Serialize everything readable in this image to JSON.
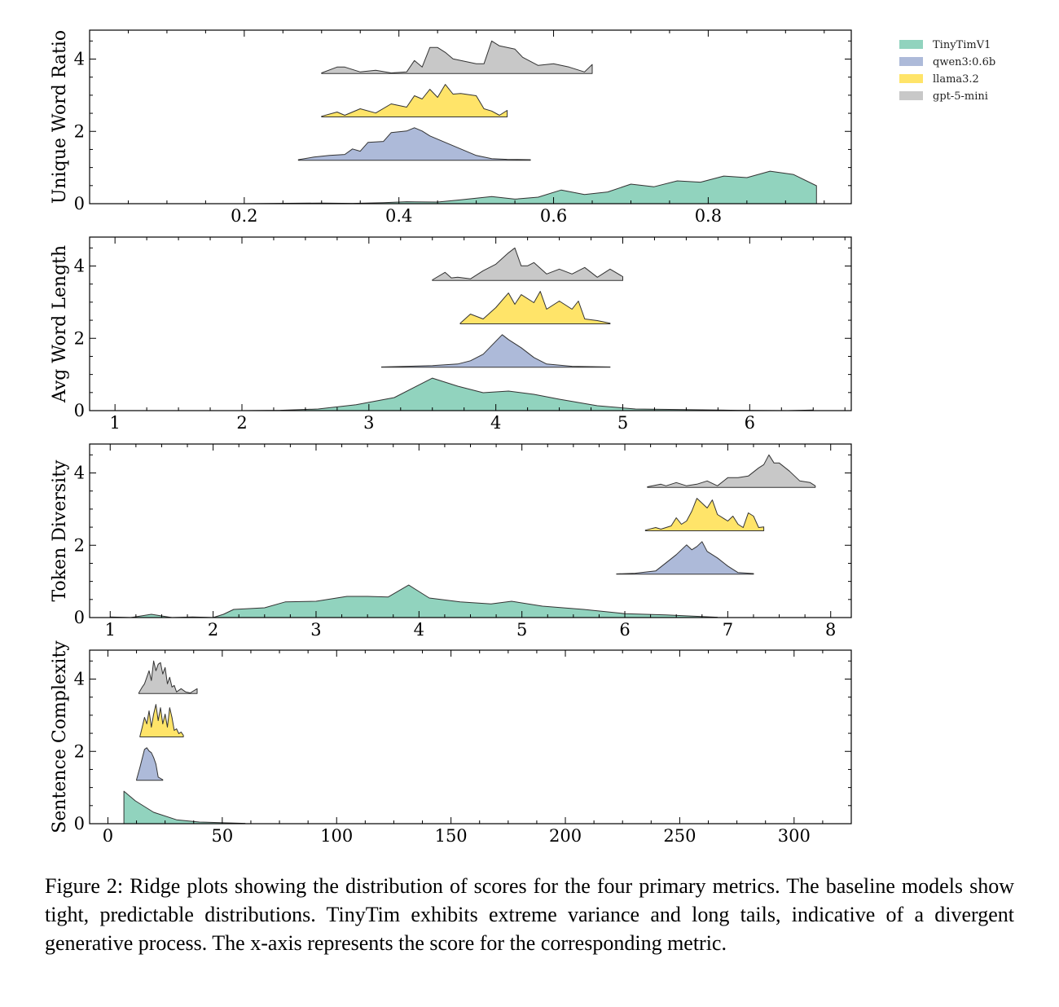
{
  "chart_data": [
    {
      "type": "area",
      "ylabel": "Unique Word Ratio",
      "xlabel": "",
      "xlim": [
        0.0,
        0.985
      ],
      "ylim": [
        0,
        4.8
      ],
      "xticks": [
        0.2,
        0.4,
        0.6,
        0.8
      ],
      "xtick_labels": [
        "0.2",
        "0.4",
        "0.6",
        "0.8"
      ],
      "yticks": [
        0,
        2,
        4
      ],
      "ytick_labels": [
        "0",
        "2",
        "4"
      ],
      "series": [
        {
          "name": "TinyTimV1",
          "offset": 0,
          "x": [
            0.03,
            0.1,
            0.2,
            0.3,
            0.34,
            0.38,
            0.41,
            0.45,
            0.48,
            0.52,
            0.55,
            0.58,
            0.61,
            0.64,
            0.67,
            0.7,
            0.73,
            0.76,
            0.79,
            0.82,
            0.85,
            0.88,
            0.91,
            0.94
          ],
          "y": [
            0,
            0,
            0,
            0.02,
            0.01,
            0.03,
            0.06,
            0.05,
            0.12,
            0.22,
            0.14,
            0.2,
            0.42,
            0.28,
            0.36,
            0.6,
            0.52,
            0.7,
            0.66,
            0.85,
            0.8,
            1.0,
            0.9,
            0.55
          ]
        },
        {
          "name": "qwen3:0.6b",
          "offset": 1.2,
          "x": [
            0.27,
            0.29,
            0.31,
            0.33,
            0.34,
            0.35,
            0.36,
            0.38,
            0.39,
            0.41,
            0.42,
            0.43,
            0.44,
            0.46,
            0.48,
            0.5,
            0.52,
            0.54,
            0.57
          ],
          "y": [
            0.02,
            0.1,
            0.15,
            0.18,
            0.35,
            0.28,
            0.55,
            0.58,
            0.85,
            0.9,
            1.0,
            0.9,
            0.75,
            0.55,
            0.35,
            0.15,
            0.05,
            0.03,
            0.02
          ]
        },
        {
          "name": "llama3.2",
          "offset": 2.4,
          "x": [
            0.3,
            0.32,
            0.33,
            0.35,
            0.37,
            0.39,
            0.41,
            0.42,
            0.43,
            0.44,
            0.45,
            0.46,
            0.47,
            0.48,
            0.5,
            0.51,
            0.52,
            0.53,
            0.54
          ],
          "y": [
            0.02,
            0.15,
            0.05,
            0.25,
            0.12,
            0.4,
            0.3,
            0.65,
            0.55,
            0.85,
            0.6,
            1.0,
            0.7,
            0.72,
            0.65,
            0.25,
            0.18,
            0.05,
            0.2
          ]
        },
        {
          "name": "gpt-5-mini",
          "offset": 3.6,
          "x": [
            0.3,
            0.32,
            0.33,
            0.35,
            0.37,
            0.39,
            0.41,
            0.42,
            0.43,
            0.44,
            0.45,
            0.46,
            0.47,
            0.48,
            0.5,
            0.51,
            0.52,
            0.53,
            0.55,
            0.56,
            0.58,
            0.6,
            0.62,
            0.64,
            0.65
          ],
          "y": [
            0.02,
            0.2,
            0.2,
            0.05,
            0.1,
            0.02,
            0.05,
            0.4,
            0.2,
            0.8,
            0.8,
            0.65,
            0.45,
            0.4,
            0.3,
            0.3,
            1.0,
            0.85,
            0.75,
            0.5,
            0.25,
            0.3,
            0.2,
            0.05,
            0.28
          ]
        }
      ]
    },
    {
      "type": "area",
      "ylabel": "Avg Word Length",
      "xlabel": "",
      "xlim": [
        0.8,
        6.8
      ],
      "ylim": [
        0,
        4.8
      ],
      "xticks": [
        1,
        2,
        3,
        4,
        5,
        6
      ],
      "xtick_labels": [
        "1",
        "2",
        "3",
        "4",
        "5",
        "6"
      ],
      "yticks": [
        0,
        2,
        4
      ],
      "ytick_labels": [
        "0",
        "2",
        "4"
      ],
      "series": [
        {
          "name": "TinyTimV1",
          "offset": 0,
          "x": [
            1.0,
            1.5,
            2.0,
            2.3,
            2.6,
            2.9,
            3.2,
            3.5,
            3.7,
            3.9,
            4.1,
            4.3,
            4.5,
            4.8,
            5.1,
            5.5,
            5.9,
            6.3,
            6.5
          ],
          "y": [
            0,
            0,
            0,
            0.01,
            0.05,
            0.18,
            0.4,
            1.0,
            0.75,
            0.55,
            0.6,
            0.5,
            0.35,
            0.15,
            0.05,
            0.03,
            0.01,
            0,
            0.02
          ]
        },
        {
          "name": "qwen3:0.6b",
          "offset": 1.2,
          "x": [
            3.1,
            3.3,
            3.5,
            3.7,
            3.8,
            3.9,
            4.0,
            4.05,
            4.1,
            4.2,
            4.3,
            4.4,
            4.6,
            4.9
          ],
          "y": [
            0.01,
            0.03,
            0.05,
            0.1,
            0.2,
            0.4,
            0.8,
            1.0,
            0.85,
            0.6,
            0.3,
            0.1,
            0.03,
            0.01
          ]
        },
        {
          "name": "llama3.2",
          "offset": 2.4,
          "x": [
            3.72,
            3.8,
            3.9,
            4.0,
            4.1,
            4.15,
            4.2,
            4.3,
            4.35,
            4.4,
            4.5,
            4.6,
            4.65,
            4.7,
            4.8,
            4.9
          ],
          "y": [
            0.02,
            0.3,
            0.15,
            0.5,
            0.95,
            0.6,
            0.9,
            0.65,
            1.0,
            0.45,
            0.7,
            0.45,
            0.7,
            0.15,
            0.1,
            0.02
          ]
        },
        {
          "name": "gpt-5-mini",
          "offset": 3.6,
          "x": [
            3.5,
            3.6,
            3.65,
            3.7,
            3.8,
            3.9,
            4.0,
            4.1,
            4.15,
            4.2,
            4.25,
            4.3,
            4.4,
            4.5,
            4.6,
            4.7,
            4.8,
            4.9,
            5.0
          ],
          "y": [
            0.02,
            0.25,
            0.08,
            0.1,
            0.05,
            0.3,
            0.5,
            0.85,
            1.0,
            0.45,
            0.45,
            0.55,
            0.2,
            0.35,
            0.2,
            0.4,
            0.1,
            0.35,
            0.12
          ]
        }
      ]
    },
    {
      "type": "area",
      "ylabel": "Token Diversity",
      "xlabel": "",
      "xlim": [
        0.8,
        8.2
      ],
      "ylim": [
        0,
        4.8
      ],
      "xticks": [
        1,
        2,
        3,
        4,
        5,
        6,
        7,
        8
      ],
      "xtick_labels": [
        "1",
        "2",
        "3",
        "4",
        "5",
        "6",
        "7",
        "8"
      ],
      "yticks": [
        0,
        2,
        4
      ],
      "ytick_labels": [
        "0",
        "2",
        "4"
      ],
      "series": [
        {
          "name": "TinyTimV1",
          "offset": 0,
          "x": [
            1.0,
            1.2,
            1.4,
            1.6,
            1.8,
            2.0,
            2.1,
            2.2,
            2.5,
            2.7,
            3.0,
            3.3,
            3.5,
            3.7,
            3.9,
            4.1,
            4.4,
            4.7,
            4.9,
            5.2,
            5.6,
            6.0,
            6.4,
            6.9
          ],
          "y": [
            0.02,
            0,
            0.1,
            0,
            0.02,
            0,
            0.1,
            0.25,
            0.3,
            0.48,
            0.5,
            0.65,
            0.65,
            0.63,
            1.0,
            0.6,
            0.48,
            0.42,
            0.5,
            0.35,
            0.25,
            0.12,
            0.08,
            0.01
          ]
        },
        {
          "name": "qwen3:0.6b",
          "offset": 1.2,
          "x": [
            5.92,
            6.1,
            6.3,
            6.4,
            6.5,
            6.6,
            6.65,
            6.7,
            6.75,
            6.8,
            6.9,
            7.0,
            7.1,
            7.25
          ],
          "y": [
            0.01,
            0.03,
            0.1,
            0.35,
            0.6,
            0.9,
            0.75,
            0.85,
            1.0,
            0.7,
            0.5,
            0.25,
            0.05,
            0.02
          ]
        },
        {
          "name": "llama3.2",
          "offset": 2.4,
          "x": [
            6.2,
            6.3,
            6.35,
            6.45,
            6.5,
            6.55,
            6.6,
            6.65,
            6.7,
            6.8,
            6.85,
            6.9,
            7.0,
            7.05,
            7.1,
            7.15,
            7.2,
            7.25,
            7.3,
            7.35
          ],
          "y": [
            0.02,
            0.1,
            0.05,
            0.15,
            0.4,
            0.2,
            0.3,
            0.6,
            1.0,
            0.7,
            0.95,
            0.5,
            0.3,
            0.45,
            0.2,
            0.1,
            0.55,
            0.45,
            0.1,
            0.12
          ]
        },
        {
          "name": "gpt-5-mini",
          "offset": 3.6,
          "x": [
            6.22,
            6.35,
            6.4,
            6.5,
            6.6,
            6.7,
            6.8,
            6.9,
            7.0,
            7.1,
            7.2,
            7.3,
            7.35,
            7.4,
            7.45,
            7.5,
            7.6,
            7.7,
            7.8,
            7.85
          ],
          "y": [
            0.02,
            0.1,
            0.05,
            0.15,
            0.05,
            0.1,
            0.2,
            0.05,
            0.3,
            0.3,
            0.35,
            0.6,
            0.7,
            1.0,
            0.75,
            0.75,
            0.5,
            0.2,
            0.15,
            0.05
          ]
        }
      ]
    },
    {
      "type": "area",
      "ylabel": "Sentence Complexity",
      "xlabel": "",
      "xlim": [
        -8,
        325
      ],
      "ylim": [
        0,
        4.8
      ],
      "xticks": [
        0,
        50,
        100,
        150,
        200,
        250,
        300
      ],
      "xtick_labels": [
        "0",
        "50",
        "100",
        "150",
        "200",
        "250",
        "300"
      ],
      "yticks": [
        0,
        2,
        4
      ],
      "ytick_labels": [
        "0",
        "2",
        "4"
      ],
      "series": [
        {
          "name": "TinyTimV1",
          "offset": 0,
          "x": [
            7,
            12,
            20,
            30,
            40,
            60
          ],
          "y": [
            1.0,
            0.7,
            0.35,
            0.12,
            0.05,
            0.01
          ]
        },
        {
          "name": "qwen3:0.6b",
          "offset": 1.2,
          "x": [
            12.5,
            14,
            16,
            17,
            18,
            19,
            20,
            21,
            22,
            24
          ],
          "y": [
            0.02,
            0.4,
            0.95,
            1.0,
            0.9,
            0.85,
            0.7,
            0.5,
            0.1,
            0.02
          ]
        },
        {
          "name": "llama3.2",
          "offset": 2.4,
          "x": [
            14,
            15,
            16,
            17,
            18,
            19,
            20,
            21,
            22,
            23,
            24,
            25,
            26,
            27,
            28,
            29,
            30,
            31,
            32,
            33
          ],
          "y": [
            0.02,
            0.3,
            0.6,
            0.4,
            0.8,
            0.3,
            0.7,
            1.0,
            0.5,
            0.9,
            0.4,
            0.7,
            0.3,
            0.9,
            0.6,
            0.2,
            0.25,
            0.1,
            0.15,
            0.05
          ]
        },
        {
          "name": "gpt-5-mini",
          "offset": 3.6,
          "x": [
            13.5,
            15,
            16,
            18,
            19,
            20,
            21,
            22,
            23,
            24,
            25,
            26,
            27,
            28,
            29,
            30,
            32,
            34,
            36,
            39
          ],
          "y": [
            0.02,
            0.2,
            0.3,
            0.7,
            0.4,
            1.0,
            0.7,
            0.9,
            0.95,
            0.6,
            0.8,
            0.3,
            0.5,
            0.2,
            0.25,
            0.05,
            0.15,
            0.05,
            0.02,
            0.15
          ]
        }
      ]
    }
  ],
  "legend": {
    "placement": "top-right, outside plots",
    "entries": [
      {
        "label": "TinyTimV1",
        "color": "#66c2a5"
      },
      {
        "label": "qwen3:0.6b",
        "color": "#8da0cb"
      },
      {
        "label": "llama3.2",
        "color": "#ffd92f"
      },
      {
        "label": "gpt-5-mini",
        "color": "#b3b3b3"
      }
    ]
  },
  "colors": {
    "TinyTimV1": "#66c2a5",
    "qwen3:0.6b": "#8da0cb",
    "llama3.2": "#ffd92f",
    "gpt-5-mini": "#b3b3b3"
  },
  "caption": "Figure 2: Ridge plots showing the distribution of scores for the four primary metrics. The baseline models show tight, predictable distributions. TinyTim exhibits extreme variance and long tails, indicative of a divergent generative process. The x-axis represents the score for the corresponding metric."
}
